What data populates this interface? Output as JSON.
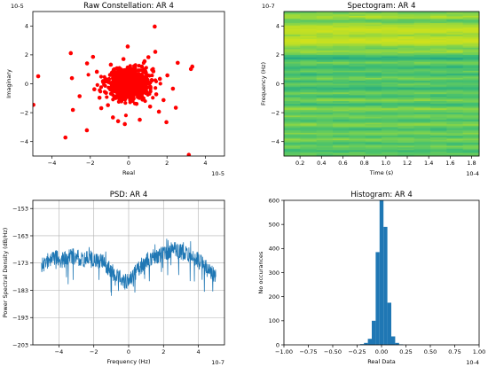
{
  "chart_data": [
    {
      "type": "scatter",
      "title": "Raw Constellation: AR 4",
      "xlabel": "Real",
      "ylabel": "Imaginary",
      "x_offset_label": "10-5",
      "y_offset_label": "10-5",
      "xlim": [
        -5,
        5
      ],
      "ylim": [
        -5,
        5
      ],
      "xticks": [
        -4,
        -2,
        0,
        2,
        4
      ],
      "yticks": [
        -4,
        -2,
        0,
        2,
        4
      ],
      "point_color": "#ff0000",
      "points": [
        [
          -0.42,
          0.16
        ],
        [
          0.23,
          -0.37
        ],
        [
          -0.12,
          0.31
        ],
        [
          0.47,
          0.07
        ],
        [
          -0.28,
          -0.44
        ],
        [
          0.09,
          0.52
        ],
        [
          0.36,
          -0.12
        ],
        [
          -0.56,
          -0.08
        ],
        [
          0.12,
          -0.18
        ],
        [
          -0.07,
          -0.6
        ],
        [
          0.62,
          0.33
        ],
        [
          -0.33,
          0.67
        ],
        [
          0.18,
          0.24
        ],
        [
          -0.18,
          -0.21
        ],
        [
          0.73,
          -0.43
        ],
        [
          -0.67,
          0.39
        ],
        [
          0.31,
          0.79
        ],
        [
          -0.46,
          -0.74
        ],
        [
          0.04,
          0.07
        ],
        [
          0.88,
          0.1
        ],
        [
          -0.84,
          -0.28
        ],
        [
          0.54,
          -0.82
        ],
        [
          -0.22,
          0.91
        ],
        [
          0.99,
          0.58
        ],
        [
          -0.97,
          0.61
        ],
        [
          0.16,
          -1.06
        ],
        [
          -0.61,
          1.07
        ],
        [
          1.14,
          -0.24
        ],
        [
          -1.18,
          -0.63
        ],
        [
          0.69,
          1.19
        ],
        [
          -0.38,
          -1.22
        ],
        [
          1.29,
          0.86
        ],
        [
          -1.34,
          0.18
        ],
        [
          0.41,
          -1.39
        ],
        [
          -0.93,
          1.32
        ],
        [
          1.44,
          -0.73
        ],
        [
          -1.52,
          -0.97
        ],
        [
          0.83,
          1.56
        ],
        [
          -1.08,
          -1.48
        ],
        [
          1.63,
          0.34
        ],
        [
          -1.66,
          0.83
        ],
        [
          1.12,
          -1.58
        ],
        [
          -0.27,
          1.71
        ],
        [
          1.82,
          -1.13
        ],
        [
          -1.79,
          -0.38
        ],
        [
          1.03,
          1.84
        ],
        [
          -1.43,
          -1.69
        ],
        [
          2.02,
          0.58
        ],
        [
          -2.17,
          1.41
        ],
        [
          1.58,
          -1.93
        ],
        [
          -1.86,
          1.86
        ],
        [
          2.31,
          -0.34
        ],
        [
          -2.56,
          -0.86
        ],
        [
          1.39,
          2.21
        ],
        [
          -0.82,
          -2.33
        ],
        [
          2.56,
          1.45
        ],
        [
          -2.96,
          0.39
        ],
        [
          -3.3,
          -3.72
        ],
        [
          -2.18,
          -3.22
        ],
        [
          -4.72,
          0.52
        ],
        [
          3.25,
          1.02
        ],
        [
          3.32,
          1.19
        ],
        [
          3.14,
          -4.92
        ],
        [
          1.36,
          3.96
        ],
        [
          -0.2,
          -2.79
        ],
        [
          -0.55,
          -2.59
        ],
        [
          0.58,
          -2.49
        ],
        [
          2.46,
          -1.66
        ],
        [
          -2.91,
          -1.81
        ],
        [
          -4.97,
          -1.46
        ],
        [
          -3.02,
          2.12
        ],
        [
          1.97,
          -2.66
        ],
        [
          -0.05,
          2.58
        ],
        [
          0.22,
          0.03
        ],
        [
          -0.03,
          -0.11
        ]
      ]
    },
    {
      "type": "heatmap",
      "title": "Spectogram: AR 4",
      "xlabel": "Time (s)",
      "ylabel": "Frequency (Hz)",
      "x_offset_label": "10-4",
      "y_offset_label": "10-7",
      "xlim": [
        0.05,
        1.87
      ],
      "ylim": [
        -5,
        5
      ],
      "xticks": [
        0.2,
        0.4,
        0.6,
        0.8,
        1.0,
        1.2,
        1.4,
        1.6,
        1.8
      ],
      "yticks": [
        -4,
        -2,
        0,
        2,
        4
      ],
      "colormap": [
        "#2a8e8c",
        "#22a884",
        "#43bf71",
        "#7ad151",
        "#bddf26",
        "#d7e219"
      ],
      "rows_top_to_bottom": [
        0.5,
        0.62,
        0.68,
        0.74,
        0.71,
        0.58,
        0.46,
        0.55,
        0.66,
        0.72,
        0.79,
        0.84,
        0.9,
        0.86,
        0.8,
        0.74,
        0.69,
        0.76,
        0.83,
        0.88,
        0.92,
        0.87,
        0.79,
        0.7,
        0.62,
        0.56,
        0.63,
        0.71,
        0.65,
        0.55,
        0.43,
        0.32,
        0.25,
        0.36,
        0.48,
        0.57,
        0.5,
        0.4,
        0.3,
        0.38,
        0.47,
        0.52,
        0.44,
        0.33,
        0.41,
        0.54,
        0.6,
        0.49,
        0.37,
        0.45,
        0.53,
        0.46,
        0.35,
        0.28,
        0.4,
        0.5,
        0.58,
        0.47,
        0.36,
        0.44,
        0.56,
        0.62,
        0.52,
        0.42,
        0.33,
        0.45,
        0.57,
        0.66,
        0.6,
        0.51,
        0.43,
        0.52,
        0.61,
        0.55,
        0.47,
        0.39,
        0.49,
        0.59,
        0.64,
        0.56,
        0.45,
        0.35,
        0.46,
        0.55,
        0.6,
        0.51,
        0.41,
        0.5,
        0.62,
        0.57,
        0.47,
        0.38,
        0.48,
        0.58,
        0.53,
        0.44,
        0.36,
        0.46,
        0.54,
        0.49
      ]
    },
    {
      "type": "line",
      "title": "PSD: AR 4",
      "xlabel": "Frequency (Hz)",
      "ylabel": "Power Spectral Density (dB/Hz)",
      "x_offset_label": "10-7",
      "xlim": [
        -5.5,
        5.5
      ],
      "ylim": [
        -203,
        -150
      ],
      "xticks": [
        -4,
        -2,
        0,
        2,
        4
      ],
      "yticks": [
        -203,
        -193,
        -183,
        -173,
        -163,
        -153
      ],
      "grid": true,
      "line_color": "#1f77b4",
      "x": [
        -5,
        -4.6,
        -4.2,
        -3.8,
        -3.4,
        -3.0,
        -2.6,
        -2.2,
        -1.8,
        -1.4,
        -1.0,
        -0.6,
        -0.2,
        0.2,
        0.6,
        1.0,
        1.4,
        1.8,
        2.2,
        2.6,
        3.0,
        3.4,
        3.8,
        4.2,
        4.6,
        5.0
      ],
      "y": [
        -174,
        -172,
        -171,
        -172,
        -170,
        -171,
        -172,
        -171,
        -172,
        -173,
        -176,
        -178,
        -180,
        -178,
        -175,
        -172,
        -171,
        -170,
        -169,
        -168,
        -169,
        -170,
        -171,
        -173,
        -176,
        -178
      ]
    },
    {
      "type": "bar",
      "title": "Histogram: AR 4",
      "xlabel": "Real Data",
      "ylabel": "No occurances",
      "x_offset_label": "10-4",
      "xlim": [
        -1.0,
        1.0
      ],
      "ylim": [
        0,
        600
      ],
      "xticks": [
        -1.0,
        -0.75,
        -0.5,
        -0.25,
        0.0,
        0.25,
        0.5,
        0.75,
        1.0
      ],
      "ytick_labels": [
        "0",
        "100",
        "200",
        "300",
        "400",
        "500",
        "600"
      ],
      "bar_color": "#1f77b4",
      "bin_width": 0.04,
      "bins": [
        -0.2,
        -0.16,
        -0.12,
        -0.08,
        -0.04,
        0.0,
        0.04,
        0.08,
        0.12,
        0.16,
        0.2
      ],
      "values": [
        3,
        8,
        25,
        100,
        385,
        600,
        490,
        175,
        35,
        8,
        2
      ]
    }
  ]
}
